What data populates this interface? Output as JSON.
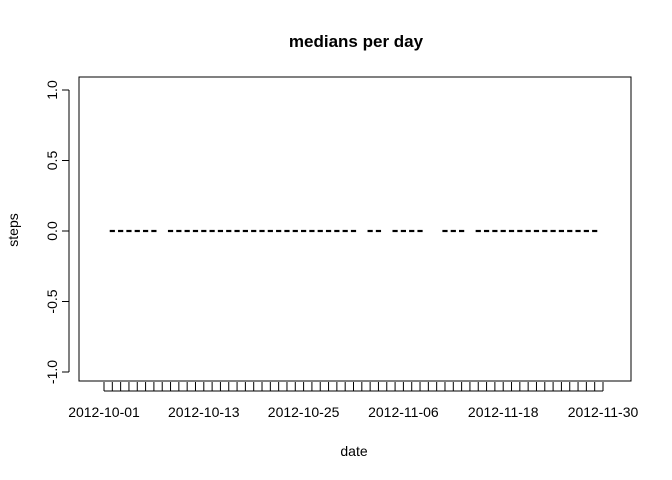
{
  "chart_data": {
    "type": "scatter",
    "title": "medians per day",
    "xlabel": "date",
    "ylabel": "steps",
    "ylim": [
      -1.0,
      1.0
    ],
    "y_ticks": [
      -1.0,
      -0.5,
      0.0,
      0.5,
      1.0
    ],
    "y_tick_labels": [
      "-1.0",
      "-0.5",
      "0.0",
      "0.5",
      "1.0"
    ],
    "x_start": "2012-10-01",
    "x_end": "2012-11-30",
    "x_tick_labels": [
      "2012-10-01",
      "2012-10-13",
      "2012-10-25",
      "2012-11-06",
      "2012-11-18",
      "2012-11-30"
    ],
    "grid": false,
    "legend": "none",
    "series": [
      {
        "marker": "dash",
        "color": "#000000",
        "points": [
          {
            "x": "2012-10-02",
            "y": 0
          },
          {
            "x": "2012-10-03",
            "y": 0
          },
          {
            "x": "2012-10-04",
            "y": 0
          },
          {
            "x": "2012-10-05",
            "y": 0
          },
          {
            "x": "2012-10-06",
            "y": 0
          },
          {
            "x": "2012-10-07",
            "y": 0
          },
          {
            "x": "2012-10-09",
            "y": 0
          },
          {
            "x": "2012-10-10",
            "y": 0
          },
          {
            "x": "2012-10-11",
            "y": 0
          },
          {
            "x": "2012-10-12",
            "y": 0
          },
          {
            "x": "2012-10-13",
            "y": 0
          },
          {
            "x": "2012-10-14",
            "y": 0
          },
          {
            "x": "2012-10-15",
            "y": 0
          },
          {
            "x": "2012-10-16",
            "y": 0
          },
          {
            "x": "2012-10-17",
            "y": 0
          },
          {
            "x": "2012-10-18",
            "y": 0
          },
          {
            "x": "2012-10-19",
            "y": 0
          },
          {
            "x": "2012-10-20",
            "y": 0
          },
          {
            "x": "2012-10-21",
            "y": 0
          },
          {
            "x": "2012-10-22",
            "y": 0
          },
          {
            "x": "2012-10-23",
            "y": 0
          },
          {
            "x": "2012-10-24",
            "y": 0
          },
          {
            "x": "2012-10-25",
            "y": 0
          },
          {
            "x": "2012-10-26",
            "y": 0
          },
          {
            "x": "2012-10-27",
            "y": 0
          },
          {
            "x": "2012-10-28",
            "y": 0
          },
          {
            "x": "2012-10-29",
            "y": 0
          },
          {
            "x": "2012-10-30",
            "y": 0
          },
          {
            "x": "2012-10-31",
            "y": 0
          },
          {
            "x": "2012-11-02",
            "y": 0
          },
          {
            "x": "2012-11-03",
            "y": 0
          },
          {
            "x": "2012-11-05",
            "y": 0
          },
          {
            "x": "2012-11-06",
            "y": 0
          },
          {
            "x": "2012-11-07",
            "y": 0
          },
          {
            "x": "2012-11-08",
            "y": 0
          },
          {
            "x": "2012-11-11",
            "y": 0
          },
          {
            "x": "2012-11-12",
            "y": 0
          },
          {
            "x": "2012-11-13",
            "y": 0
          },
          {
            "x": "2012-11-15",
            "y": 0
          },
          {
            "x": "2012-11-16",
            "y": 0
          },
          {
            "x": "2012-11-17",
            "y": 0
          },
          {
            "x": "2012-11-18",
            "y": 0
          },
          {
            "x": "2012-11-19",
            "y": 0
          },
          {
            "x": "2012-11-20",
            "y": 0
          },
          {
            "x": "2012-11-21",
            "y": 0
          },
          {
            "x": "2012-11-22",
            "y": 0
          },
          {
            "x": "2012-11-23",
            "y": 0
          },
          {
            "x": "2012-11-24",
            "y": 0
          },
          {
            "x": "2012-11-25",
            "y": 0
          },
          {
            "x": "2012-11-26",
            "y": 0
          },
          {
            "x": "2012-11-27",
            "y": 0
          },
          {
            "x": "2012-11-28",
            "y": 0
          },
          {
            "x": "2012-11-29",
            "y": 0
          }
        ]
      }
    ]
  }
}
